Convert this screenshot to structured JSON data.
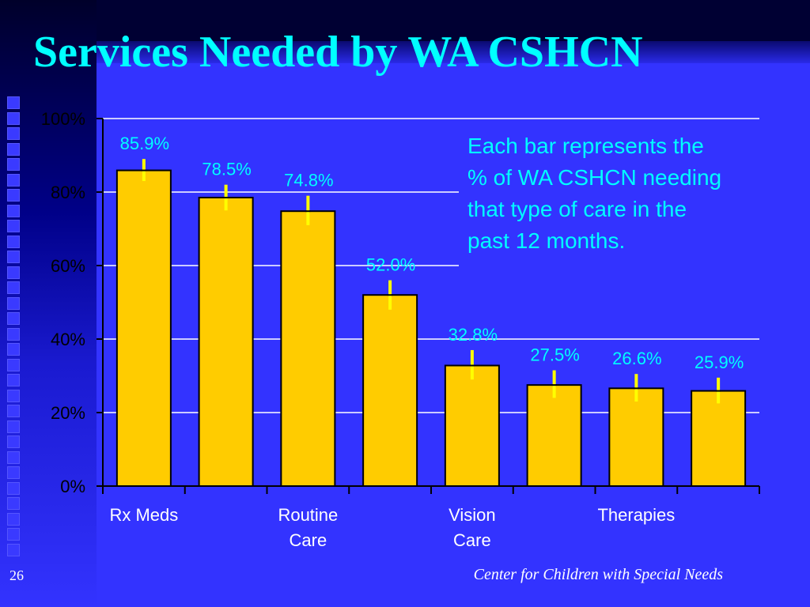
{
  "slide": {
    "title": "Services Needed by WA CSHCN",
    "page_number": "26",
    "footer": "Center for Children with Special Needs"
  },
  "colors": {
    "background": "#3333ff",
    "title": "#00ffff",
    "bar_fill": "#ffcc00",
    "error_bar": "#ffff00",
    "data_label": "#00ffff",
    "gridline": "#ffffff"
  },
  "chart_data": {
    "type": "bar",
    "categories": [
      "Rx Meds",
      "",
      "Routine Care",
      "",
      "Vision Care",
      "",
      "Therapies",
      ""
    ],
    "category_labels": [
      {
        "index": 0,
        "lines": [
          "Rx Meds"
        ]
      },
      {
        "index": 2,
        "lines": [
          "Routine",
          "Care"
        ]
      },
      {
        "index": 4,
        "lines": [
          "Vision",
          "Care"
        ]
      },
      {
        "index": 6,
        "lines": [
          "Therapies"
        ]
      }
    ],
    "values": [
      85.9,
      78.5,
      74.8,
      52.0,
      32.8,
      27.5,
      26.6,
      25.9
    ],
    "value_labels": [
      "85.9%",
      "78.5%",
      "74.8%",
      "52.0%",
      "32.8%",
      "27.5%",
      "26.6%",
      "25.9%"
    ],
    "error_bars": [
      {
        "low": 83,
        "high": 89
      },
      {
        "low": 75,
        "high": 82
      },
      {
        "low": 71,
        "high": 79
      },
      {
        "low": 48,
        "high": 56
      },
      {
        "low": 29,
        "high": 37
      },
      {
        "low": 24,
        "high": 31.5
      },
      {
        "low": 23,
        "high": 30.5
      },
      {
        "low": 22.5,
        "high": 29.5
      }
    ],
    "ylim": [
      0,
      100
    ],
    "yticks": [
      0,
      20,
      40,
      60,
      80,
      100
    ],
    "ytick_labels": [
      "0%",
      "20%",
      "40%",
      "60%",
      "80%",
      "100%"
    ],
    "grid": true,
    "annotation": "Each bar represents the % of WA CSHCN needing that type of care in the past 12 months."
  }
}
